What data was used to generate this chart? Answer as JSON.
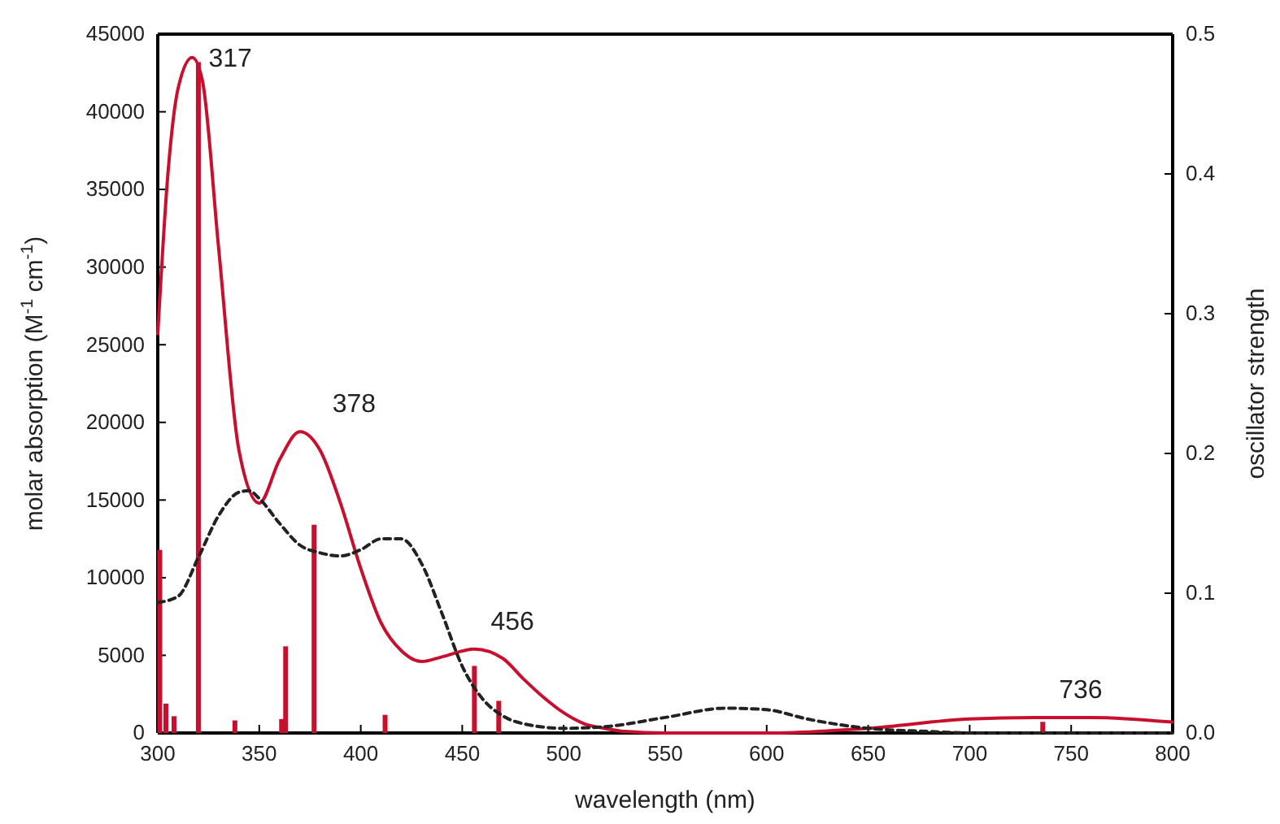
{
  "chart_data": {
    "type": "line",
    "xlabel": "wavelength (nm)",
    "ylabel": "molar absorption (M$^{-1}$ cm$^{-1}$)",
    "y2label": "oscillator strength",
    "xlim": [
      300,
      800
    ],
    "xticks": [
      300,
      350,
      400,
      450,
      500,
      550,
      600,
      650,
      700,
      750,
      800
    ],
    "ylim": [
      0,
      45000
    ],
    "yticks": [
      0,
      5000,
      10000,
      15000,
      20000,
      25000,
      30000,
      35000,
      40000,
      45000
    ],
    "y2lim": [
      0,
      0.5
    ],
    "y2ticks": [
      {
        "value": 0,
        "label": "0.0"
      },
      {
        "value": 0.1,
        "label": "0.1"
      },
      {
        "value": 0.2,
        "label": "0.2"
      },
      {
        "value": 0.3,
        "label": "0.3"
      },
      {
        "value": 0.4,
        "label": "0.4"
      },
      {
        "value": 0.5,
        "label": "0.5"
      }
    ],
    "grid": false,
    "series": [
      {
        "color": "#c8102e",
        "line_style": "solid",
        "x": [
          300,
          305,
          310,
          317,
          322,
          330,
          340,
          350,
          360,
          370,
          380,
          390,
          400,
          410,
          420,
          430,
          440,
          456,
          470,
          480,
          490,
          500,
          510,
          520,
          530,
          550,
          600,
          650,
          700,
          736,
          760,
          800
        ],
        "values": [
          25700,
          36000,
          41500,
          43500,
          42000,
          31200,
          18200,
          14800,
          17600,
          19400,
          18200,
          14800,
          10600,
          7100,
          5300,
          4600,
          4900,
          5400,
          4800,
          3500,
          2300,
          1300,
          600,
          300,
          100,
          0,
          0,
          300,
          900,
          1000,
          1000,
          700
        ]
      },
      {
        "color": "#222222",
        "line_style": "dashed",
        "x": [
          300,
          310,
          320,
          330,
          340,
          345,
          350,
          360,
          370,
          380,
          390,
          400,
          410,
          420,
          430,
          440,
          450,
          460,
          470,
          480,
          500,
          520,
          550,
          580,
          600,
          620,
          650,
          680,
          700,
          800
        ],
        "values": [
          8400,
          8800,
          11300,
          14000,
          15500,
          15600,
          15100,
          13500,
          12100,
          11600,
          11400,
          11800,
          12500,
          12500,
          10900,
          7700,
          4300,
          2200,
          1100,
          600,
          300,
          400,
          1000,
          1600,
          1500,
          900,
          300,
          100,
          0,
          0
        ]
      },
      {
        "type": "bar",
        "axis": "y2",
        "color": "#c8102e",
        "x": [
          301,
          304,
          308,
          320,
          338,
          361,
          363,
          377,
          412,
          456,
          468,
          736
        ],
        "values": [
          0.131,
          0.021,
          0.012,
          0.48,
          0.009,
          0.01,
          0.062,
          0.149,
          0.013,
          0.048,
          0.023,
          0.008
        ]
      }
    ],
    "annotations": [
      {
        "text": "317",
        "x": 317,
        "y": 43500
      },
      {
        "text": "378",
        "x": 378,
        "y": 19400
      },
      {
        "text": "456",
        "x": 456,
        "y": 5400
      },
      {
        "text": "736",
        "x": 736,
        "y": 1000
      }
    ]
  }
}
